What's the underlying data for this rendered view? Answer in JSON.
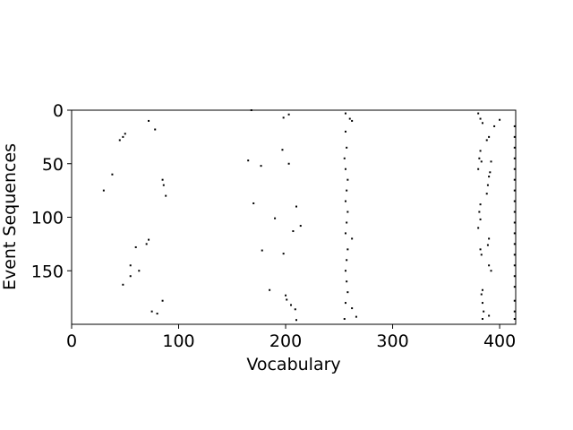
{
  "chart_data": {
    "type": "scatter",
    "title": "",
    "xlabel": "Vocabulary",
    "ylabel": "Event Sequences",
    "xlim": [
      0,
      415
    ],
    "ylim": [
      200,
      0
    ],
    "y_inverted": true,
    "grid": false,
    "legend": "none",
    "marker_color": "#000000",
    "x_ticks": [
      0,
      100,
      200,
      300,
      400
    ],
    "x_tick_labels": [
      "0",
      "100",
      "200",
      "300",
      "400"
    ],
    "y_ticks": [
      0,
      50,
      100,
      150
    ],
    "y_tick_labels": [
      "0",
      "50",
      "100",
      "150"
    ],
    "series": [
      {
        "points": [
          [
            168,
            0
          ],
          [
            198,
            7
          ],
          [
            203,
            4
          ],
          [
            256,
            3
          ],
          [
            260,
            8
          ],
          [
            262,
            10
          ],
          [
            380,
            3
          ],
          [
            382,
            8
          ],
          [
            384,
            12
          ],
          [
            400,
            9
          ],
          [
            395,
            15
          ],
          [
            390,
            25
          ],
          [
            388,
            28
          ],
          [
            72,
            10
          ],
          [
            78,
            18
          ],
          [
            50,
            22
          ],
          [
            48,
            25
          ],
          [
            45,
            28
          ],
          [
            197,
            37
          ],
          [
            203,
            50
          ],
          [
            165,
            47
          ],
          [
            177,
            52
          ],
          [
            256,
            20
          ],
          [
            257,
            35
          ],
          [
            255,
            45
          ],
          [
            256,
            55
          ],
          [
            258,
            65
          ],
          [
            257,
            75
          ],
          [
            256,
            85
          ],
          [
            258,
            95
          ],
          [
            257,
            105
          ],
          [
            256,
            115
          ],
          [
            262,
            120
          ],
          [
            258,
            130
          ],
          [
            257,
            140
          ],
          [
            256,
            150
          ],
          [
            257,
            160
          ],
          [
            258,
            170
          ],
          [
            256,
            180
          ],
          [
            262,
            185
          ],
          [
            255,
            195
          ],
          [
            266,
            193
          ],
          [
            382,
            38
          ],
          [
            381,
            45
          ],
          [
            383,
            48
          ],
          [
            380,
            55
          ],
          [
            392,
            48
          ],
          [
            391,
            58
          ],
          [
            390,
            62
          ],
          [
            389,
            70
          ],
          [
            388,
            78
          ],
          [
            382,
            88
          ],
          [
            381,
            95
          ],
          [
            382,
            102
          ],
          [
            380,
            110
          ],
          [
            390,
            120
          ],
          [
            389,
            126
          ],
          [
            382,
            130
          ],
          [
            383,
            135
          ],
          [
            390,
            145
          ],
          [
            392,
            150
          ],
          [
            384,
            168
          ],
          [
            383,
            172
          ],
          [
            384,
            180
          ],
          [
            385,
            188
          ],
          [
            390,
            192
          ],
          [
            384,
            195
          ],
          [
            414,
            15
          ],
          [
            414,
            25
          ],
          [
            414,
            35
          ],
          [
            414,
            45
          ],
          [
            414,
            55
          ],
          [
            414,
            65
          ],
          [
            414,
            75
          ],
          [
            414,
            85
          ],
          [
            414,
            95
          ],
          [
            414,
            105
          ],
          [
            414,
            115
          ],
          [
            414,
            125
          ],
          [
            414,
            135
          ],
          [
            414,
            145
          ],
          [
            414,
            155
          ],
          [
            414,
            165
          ],
          [
            414,
            178
          ],
          [
            414,
            188
          ],
          [
            414,
            195
          ],
          [
            38,
            60
          ],
          [
            85,
            65
          ],
          [
            86,
            70
          ],
          [
            88,
            80
          ],
          [
            30,
            75
          ],
          [
            170,
            87
          ],
          [
            210,
            90
          ],
          [
            190,
            101
          ],
          [
            214,
            108
          ],
          [
            207,
            113
          ],
          [
            72,
            121
          ],
          [
            70,
            125
          ],
          [
            60,
            128
          ],
          [
            178,
            131
          ],
          [
            198,
            134
          ],
          [
            55,
            145
          ],
          [
            63,
            150
          ],
          [
            55,
            155
          ],
          [
            48,
            163
          ],
          [
            185,
            168
          ],
          [
            200,
            173
          ],
          [
            201,
            177
          ],
          [
            205,
            182
          ],
          [
            209,
            186
          ],
          [
            85,
            178
          ],
          [
            75,
            188
          ],
          [
            80,
            190
          ],
          [
            210,
            196
          ]
        ]
      }
    ]
  }
}
